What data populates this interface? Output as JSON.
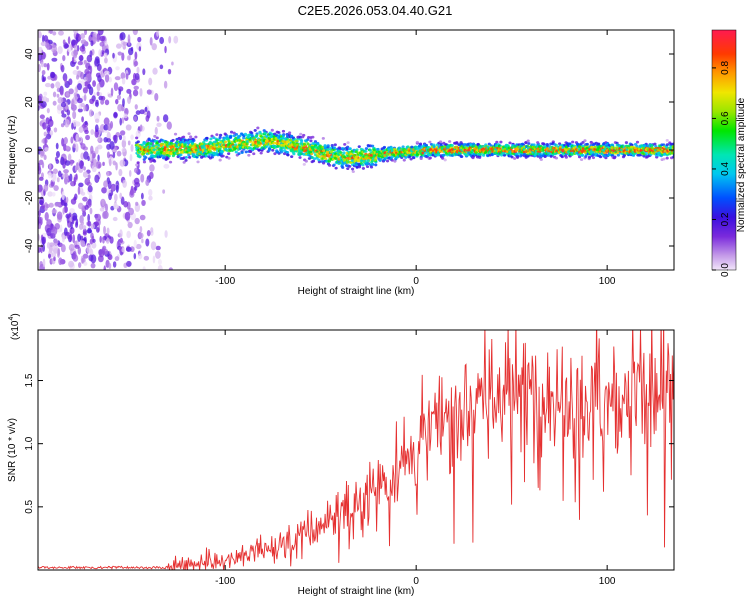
{
  "figure_title": "C2E5.2026.053.04.40.G21",
  "colors": {
    "line": "#e53030",
    "axis": "#000000"
  },
  "chart_data": [
    {
      "name": "spectrogram",
      "type": "heatmap",
      "xlabel": "Height of straight line (km)",
      "ylabel": "Frequency (Hz)",
      "xlim": [
        -198,
        135
      ],
      "ylim": [
        -50,
        50
      ],
      "xticks": [
        -100,
        0,
        100
      ],
      "yticks": [
        -40,
        -20,
        0,
        20,
        40
      ],
      "ridge": {
        "x": [
          -145,
          -130,
          -115,
          -100,
          -90,
          -80,
          -70,
          -60,
          -50,
          -40,
          -30,
          -20,
          -10,
          0,
          10,
          20,
          40,
          60,
          80,
          100,
          120,
          135
        ],
        "freq": [
          0,
          0.5,
          0.5,
          2,
          3,
          4,
          3,
          1,
          -1,
          -3,
          -3,
          -2,
          -1,
          -0.5,
          0,
          0,
          0,
          0,
          0,
          0,
          0,
          0
        ]
      },
      "noise_region_x": [
        -198,
        -130
      ],
      "colorbar": {
        "label": "Normalized spectral amplitude",
        "range": [
          0.0,
          0.95
        ],
        "ticks": [
          0.0,
          0.2,
          0.4,
          0.6,
          0.8
        ],
        "tick_labels": [
          "0.0",
          "0.2",
          "0.4",
          "0.6",
          "0.8"
        ]
      }
    },
    {
      "name": "snr",
      "type": "line",
      "xlabel": "Height of straight line (km)",
      "ylabel": "SNR (10 * v/v)",
      "scale_note": "(x10",
      "scale_exp": "4",
      "scale_close": ")",
      "xlim": [
        -198,
        135
      ],
      "ylim": [
        0,
        1.9
      ],
      "xticks": [
        -100,
        0,
        100
      ],
      "yticks": [
        0.5,
        1.0,
        1.5
      ],
      "ytick_labels": [
        "0.5",
        "1.0",
        "1.5"
      ],
      "trend": {
        "x": [
          -198,
          -150,
          -130,
          -110,
          -90,
          -70,
          -50,
          -30,
          -10,
          0,
          10,
          20,
          30,
          40,
          60,
          80,
          100,
          120,
          135
        ],
        "y": [
          0.01,
          0.01,
          0.02,
          0.06,
          0.12,
          0.2,
          0.35,
          0.55,
          0.8,
          0.95,
          1.15,
          1.3,
          1.35,
          1.4,
          1.42,
          1.4,
          1.38,
          1.37,
          1.38
        ]
      }
    }
  ]
}
